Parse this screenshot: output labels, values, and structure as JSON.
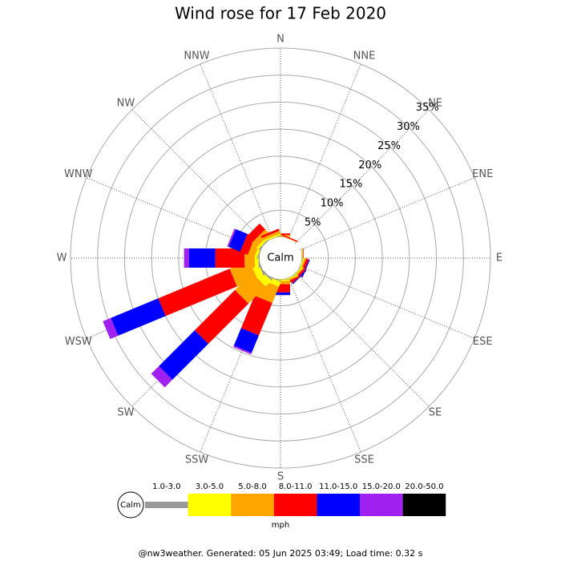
{
  "chart_data": {
    "type": "windrose",
    "title": "Wind rose for 17 Feb 2020",
    "categories": [
      "N",
      "NNE",
      "NE",
      "ENE",
      "E",
      "ESE",
      "SE",
      "SSE",
      "S",
      "SSW",
      "SW",
      "WSW",
      "W",
      "WNW",
      "NW",
      "NNW"
    ],
    "series": [
      {
        "name": "1.0-3.0",
        "color": "#999999",
        "values": [
          0.1,
          0,
          0,
          0,
          0.1,
          0.1,
          0.1,
          0.1,
          0.1,
          0.2,
          0.3,
          0.3,
          0.2,
          0.2,
          0.2,
          0.1
        ]
      },
      {
        "name": "3.0-5.0",
        "color": "#ffff00",
        "values": [
          0.1,
          0,
          0,
          0,
          0.1,
          0.2,
          0.2,
          0.2,
          0.3,
          1,
          1.5,
          1.3,
          0.7,
          0.5,
          0.5,
          0.3
        ]
      },
      {
        "name": "5.0-8.0",
        "color": "#ffa500",
        "values": [
          0.2,
          0.1,
          0,
          0,
          0.1,
          0.3,
          0.3,
          0.3,
          0.6,
          3.2,
          4.5,
          4,
          1.9,
          1.3,
          1.2,
          0.5
        ]
      },
      {
        "name": "8.0-11.0",
        "color": "#ff0000",
        "values": [
          0.3,
          0.2,
          0,
          0,
          0.1,
          0.5,
          0.4,
          0.3,
          1.5,
          6.5,
          10.5,
          14.3,
          5.4,
          1.5,
          1.5,
          0.4
        ]
      },
      {
        "name": "11.0-15.0",
        "color": "#0000ff",
        "values": [
          0,
          0,
          0,
          0,
          0,
          0.2,
          0.2,
          0,
          0.5,
          3.5,
          9.4,
          9.5,
          4.9,
          2.3,
          0,
          0
        ]
      },
      {
        "name": "15.0-20.0",
        "color": "#a020f0",
        "values": [
          0,
          0,
          0,
          0,
          0,
          0,
          0,
          0,
          0,
          0.3,
          2,
          1.6,
          0.9,
          0.3,
          0,
          0
        ]
      },
      {
        "name": "20.0-50.0",
        "color": "#000000",
        "values": [
          0,
          0,
          0,
          0,
          0,
          0,
          0,
          0,
          0,
          0,
          0,
          0,
          0,
          0,
          0,
          0
        ]
      }
    ],
    "rlim": [
      0,
      35
    ],
    "rticks": [
      {
        "value": 5,
        "label": "5%"
      },
      {
        "value": 10,
        "label": "10%"
      },
      {
        "value": 15,
        "label": "15%"
      },
      {
        "value": 20,
        "label": "20%"
      },
      {
        "value": 25,
        "label": "25%"
      },
      {
        "value": 30,
        "label": "30%"
      },
      {
        "value": 35,
        "label": "35%"
      }
    ],
    "calm_label": "Calm",
    "unit": "mph",
    "footer": "@nw3weather. Generated: 05 Jun 2025 03:49; Load time: 0.32 s"
  }
}
